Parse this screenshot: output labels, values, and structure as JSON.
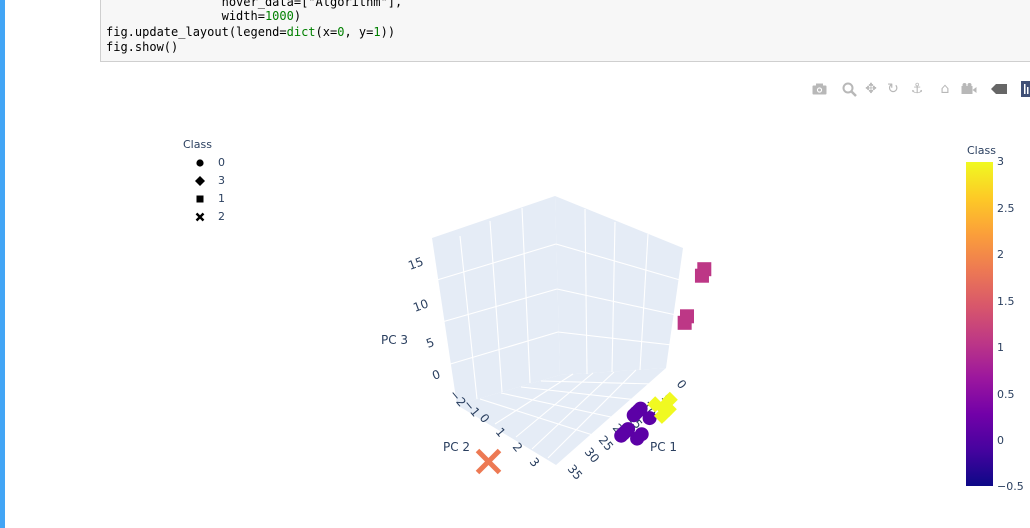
{
  "code": {
    "line1": "                hover_data=[\"Algorithm\"],",
    "line2_pre": "                width=",
    "line2_num": "1000",
    "line2_post": ")",
    "line3_pre": "fig.update_layout(legend=",
    "line3_fn": "dict",
    "line3_mid": "(x=",
    "line3_n0": "0",
    "line3_mid2": ", y=",
    "line3_n1": "1",
    "line3_post": "))",
    "line4": "fig.show()"
  },
  "modebar": {
    "icons": [
      "camera-icon",
      "zoom-icon",
      "pan-icon",
      "orbit-rotate-icon",
      "turntable-icon",
      "home-icon",
      "camera-reset-icon",
      "hover-toggle-icon",
      "plotly-logo-icon"
    ]
  },
  "legend": {
    "title": "Class",
    "items": [
      {
        "label": "0",
        "symbol": "circle"
      },
      {
        "label": "3",
        "symbol": "diamond"
      },
      {
        "label": "1",
        "symbol": "square"
      },
      {
        "label": "2",
        "symbol": "x"
      }
    ]
  },
  "colorbar": {
    "title": "Class",
    "ticks": [
      "3",
      "2.5",
      "2",
      "1.5",
      "1",
      "0.5",
      "0",
      "−0.5"
    ],
    "range": [
      -0.5,
      3
    ]
  },
  "chart_data": {
    "type": "scatter",
    "scene": "3d",
    "xlabel": "PC 1",
    "ylabel": "PC 2",
    "zlabel": "PC 3",
    "x_ticks": [
      "0",
      "5",
      "10",
      "15",
      "20",
      "25",
      "30",
      "35"
    ],
    "y_ticks": [
      "−2",
      "−1",
      "0",
      "1",
      "2",
      "3"
    ],
    "z_ticks": [
      "0",
      "5",
      "10",
      "15"
    ],
    "xlim": [
      0,
      35
    ],
    "ylim": [
      -2,
      3
    ],
    "zlim": [
      0,
      15
    ],
    "color_scale": "plasma",
    "series": [
      {
        "name": "0",
        "symbol": "circle",
        "color": "#5c01a6",
        "points": [
          [
            2,
            -1,
            4
          ],
          [
            3,
            -1,
            4
          ],
          [
            4,
            -1,
            4
          ],
          [
            5,
            -1,
            4
          ],
          [
            6,
            -1,
            3
          ],
          [
            7,
            -1,
            3
          ],
          [
            8,
            -1,
            3
          ],
          [
            2,
            -1.5,
            4
          ],
          [
            4,
            -1.5,
            3
          ],
          [
            6,
            -1.5,
            3
          ],
          [
            9,
            -1,
            3
          ]
        ]
      },
      {
        "name": "3",
        "symbol": "diamond",
        "color": "#f0f921",
        "points": [
          [
            0,
            -1.8,
            5
          ],
          [
            1,
            -2,
            5
          ],
          [
            2,
            -2,
            5
          ],
          [
            0,
            -2,
            6
          ],
          [
            1,
            -1.5,
            5
          ],
          [
            -1,
            -2,
            5
          ]
        ]
      },
      {
        "name": "1",
        "symbol": "square",
        "color": "#bd3786",
        "points": [
          [
            0,
            -1.9,
            17
          ],
          [
            0.3,
            -1.9,
            16.5
          ],
          [
            1,
            -1.8,
            13
          ],
          [
            1.3,
            -1.8,
            12.5
          ]
        ]
      },
      {
        "name": "2",
        "symbol": "x",
        "color": "#ed7953",
        "points": [
          [
            35,
            2.5,
            0
          ]
        ]
      }
    ]
  }
}
